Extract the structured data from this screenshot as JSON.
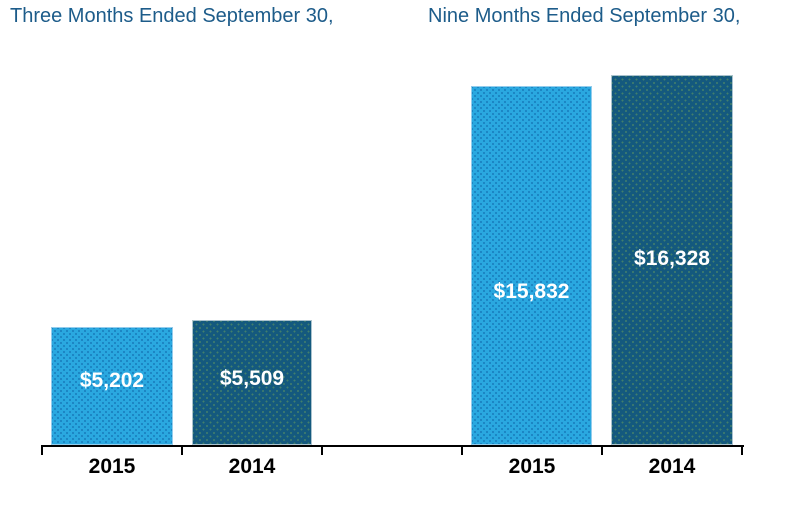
{
  "titles": {
    "left": "Three Months Ended September 30,",
    "right": "Nine Months Ended September 30,"
  },
  "colors": {
    "series_2015": "#2AA8E0",
    "series_2014": "#14597E",
    "title_text": "#1D5C8A",
    "value_label_text": "#FFFFFF",
    "axis": "#000000",
    "axis_label_text": "#000000",
    "background": "#FFFFFF"
  },
  "chart_data": {
    "type": "bar",
    "title": "",
    "group_titles": [
      "Three Months Ended September 30,",
      "Nine Months Ended September 30,"
    ],
    "xlabel": "",
    "ylabel": "",
    "ylim": [
      0,
      17650
    ],
    "grid": false,
    "legend": "none",
    "value_label_position": "inside",
    "series_colors": {
      "2015": "#2AA8E0",
      "2014": "#14597E"
    },
    "groups": [
      {
        "name": "Three Months Ended September 30,",
        "bars": [
          {
            "category": "2015",
            "series": "2015",
            "value": 5202,
            "label": "$5,202"
          },
          {
            "category": "2014",
            "series": "2014",
            "value": 5509,
            "label": "$5,509"
          }
        ]
      },
      {
        "name": "Nine Months Ended September 30,",
        "bars": [
          {
            "category": "2015",
            "series": "2015",
            "value": 15832,
            "label": "$15,832"
          },
          {
            "category": "2014",
            "series": "2014",
            "value": 16328,
            "label": "$16,328"
          }
        ]
      }
    ]
  }
}
